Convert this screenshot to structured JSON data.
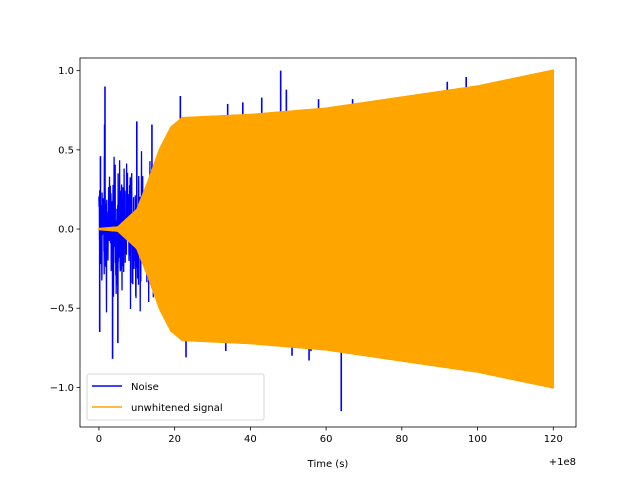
{
  "chart_data": {
    "type": "line",
    "title": "",
    "xlabel": "Time (s)",
    "ylabel": "",
    "x_offset_text": "+1e8",
    "xlim": [
      -5,
      126
    ],
    "ylim": [
      -1.25,
      1.08
    ],
    "x_ticks": [
      0,
      20,
      40,
      60,
      80,
      100,
      120
    ],
    "x_tick_labels": [
      "0",
      "20",
      "40",
      "60",
      "80",
      "100",
      "120"
    ],
    "y_ticks": [
      -1.0,
      -0.5,
      0.0,
      0.5,
      1.0
    ],
    "y_tick_labels": [
      "−1.0",
      "−0.5",
      "0.0",
      "0.5",
      "1.0"
    ],
    "grid": false,
    "legend_position": "lower-left",
    "series": [
      {
        "name": "Noise",
        "color": "#0000ff",
        "kind": "noise",
        "x_range": [
          0,
          120
        ],
        "peaks": [
          {
            "x": 0.4,
            "y": 0.46
          },
          {
            "x": 0.2,
            "y": -0.65
          },
          {
            "x": 1.5,
            "y": 0.66
          },
          {
            "x": 1.6,
            "y": 0.9
          },
          {
            "x": 3.6,
            "y": -0.82
          },
          {
            "x": 5,
            "y": -0.72
          },
          {
            "x": 10,
            "y": 0.68
          },
          {
            "x": 14,
            "y": 0.66
          },
          {
            "x": 21.5,
            "y": 0.84
          },
          {
            "x": 23,
            "y": -0.81
          },
          {
            "x": 34,
            "y": 0.79
          },
          {
            "x": 33.5,
            "y": -0.77
          },
          {
            "x": 38,
            "y": 0.8
          },
          {
            "x": 43,
            "y": 0.83
          },
          {
            "x": 48,
            "y": 1.0
          },
          {
            "x": 49.5,
            "y": 0.88
          },
          {
            "x": 51,
            "y": -0.8
          },
          {
            "x": 55.5,
            "y": -0.83
          },
          {
            "x": 58,
            "y": 0.82
          },
          {
            "x": 56,
            "y": -0.77
          },
          {
            "x": 64,
            "y": -1.15
          },
          {
            "x": 67,
            "y": 0.82
          },
          {
            "x": 71,
            "y": 0.8
          },
          {
            "x": 73,
            "y": -0.78
          },
          {
            "x": 92,
            "y": 0.93
          },
          {
            "x": 97,
            "y": 0.96
          },
          {
            "x": 98,
            "y": 0.78
          }
        ]
      },
      {
        "name": "unwhitened signal",
        "color": "#ffa500",
        "kind": "chirp-envelope",
        "x_range": [
          0,
          120
        ],
        "envelope": [
          [
            0,
            0
          ],
          [
            5,
            0.01
          ],
          [
            10,
            0.12
          ],
          [
            13,
            0.3
          ],
          [
            16,
            0.5
          ],
          [
            19,
            0.64
          ],
          [
            22,
            0.7
          ],
          [
            40,
            0.72
          ],
          [
            60,
            0.76
          ],
          [
            80,
            0.83
          ],
          [
            100,
            0.9
          ],
          [
            120,
            1.0
          ]
        ]
      }
    ]
  }
}
